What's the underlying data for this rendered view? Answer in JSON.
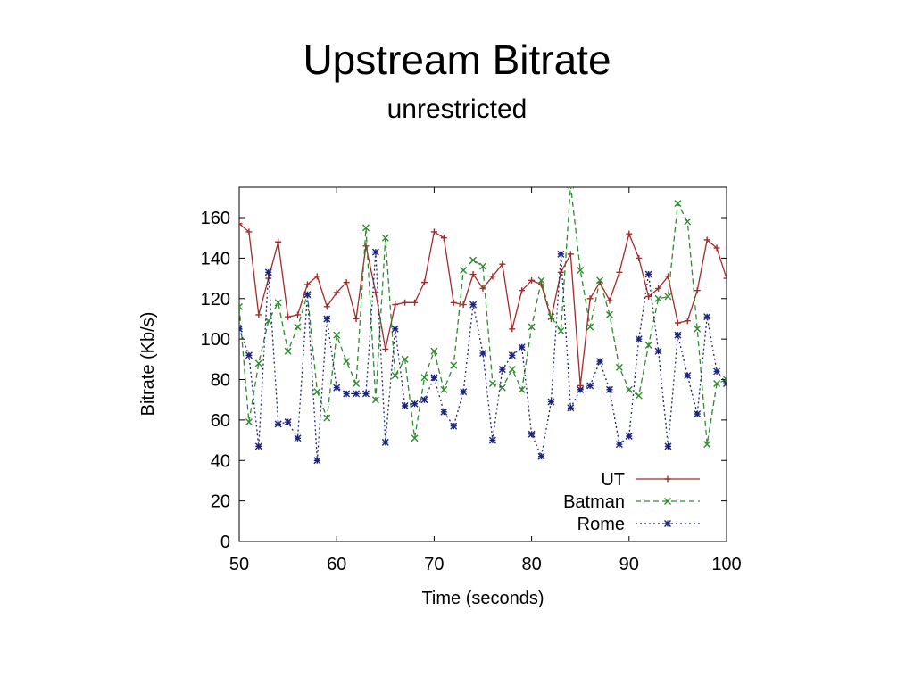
{
  "slide": {
    "title": "Upstream Bitrate",
    "subtitle": "unrestricted"
  },
  "chart_data": {
    "type": "line",
    "xlabel": "Time (seconds)",
    "ylabel": "Bitrate (Kb/s)",
    "xlim": [
      50,
      100
    ],
    "ylim": [
      0,
      175
    ],
    "xticks": [
      50,
      60,
      70,
      80,
      90,
      100
    ],
    "yticks": [
      0,
      20,
      40,
      60,
      80,
      100,
      120,
      140,
      160
    ],
    "grid": false,
    "legend_position": "bottom-right",
    "x": [
      50,
      51,
      52,
      53,
      54,
      55,
      56,
      57,
      58,
      59,
      60,
      61,
      62,
      63,
      64,
      65,
      66,
      67,
      68,
      69,
      70,
      71,
      72,
      73,
      74,
      75,
      76,
      77,
      78,
      79,
      80,
      81,
      82,
      83,
      84,
      85,
      86,
      87,
      88,
      89,
      90,
      91,
      92,
      93,
      94,
      95,
      96,
      97,
      98,
      99,
      100
    ],
    "series": [
      {
        "name": "UT",
        "color": "#a52a2a",
        "dash": "solid",
        "marker": "plus",
        "values": [
          157,
          153,
          112,
          130,
          148,
          111,
          112,
          127,
          131,
          116,
          123,
          128,
          110,
          146,
          123,
          95,
          117,
          118,
          118,
          128,
          153,
          150,
          118,
          117,
          132,
          125,
          131,
          137,
          105,
          124,
          129,
          127,
          110,
          133,
          142,
          77,
          120,
          128,
          119,
          133,
          152,
          140,
          121,
          125,
          131,
          108,
          109,
          124,
          149,
          145,
          130
        ]
      },
      {
        "name": "Batman",
        "color": "#2e8b2e",
        "dash": "6,4",
        "marker": "cross",
        "values": [
          116,
          59,
          88,
          109,
          118,
          94,
          106,
          122,
          74,
          61,
          102,
          89,
          78,
          155,
          70,
          150,
          82,
          90,
          51,
          81,
          94,
          75,
          87,
          134,
          139,
          136,
          78,
          76,
          85,
          75,
          106,
          129,
          111,
          104,
          176,
          134,
          106,
          129,
          112,
          86,
          75,
          72,
          97,
          120,
          121,
          167,
          158,
          105,
          48,
          78,
          80
        ]
      },
      {
        "name": "Rome",
        "color": "#1a237e",
        "dash": "2,3",
        "marker": "star",
        "values": [
          105,
          92,
          47,
          133,
          58,
          59,
          51,
          122,
          40,
          110,
          76,
          73,
          73,
          73,
          143,
          49,
          105,
          67,
          68,
          70,
          81,
          64,
          57,
          74,
          117,
          93,
          50,
          85,
          92,
          96,
          53,
          42,
          69,
          142,
          66,
          75,
          77,
          89,
          75,
          48,
          52,
          100,
          132,
          94,
          47,
          102,
          82,
          63,
          111,
          84,
          78
        ]
      }
    ]
  }
}
